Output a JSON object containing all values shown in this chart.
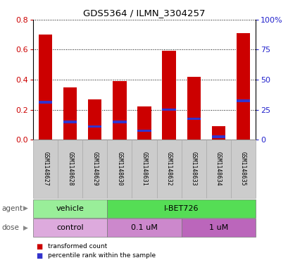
{
  "title": "GDS5364 / ILMN_3304257",
  "samples": [
    "GSM1148627",
    "GSM1148628",
    "GSM1148629",
    "GSM1148630",
    "GSM1148631",
    "GSM1148632",
    "GSM1148633",
    "GSM1148634",
    "GSM1148635"
  ],
  "red_values": [
    0.7,
    0.35,
    0.27,
    0.39,
    0.22,
    0.59,
    0.42,
    0.09,
    0.71
  ],
  "blue_values": [
    0.25,
    0.12,
    0.09,
    0.12,
    0.06,
    0.2,
    0.14,
    0.02,
    0.26
  ],
  "ylim_left": [
    0,
    0.8
  ],
  "ylim_right": [
    0,
    100
  ],
  "y_ticks_left": [
    0,
    0.2,
    0.4,
    0.6,
    0.8
  ],
  "y_ticks_right_vals": [
    0,
    25,
    50,
    75,
    100
  ],
  "y_ticks_right_labels": [
    "0",
    "25",
    "50",
    "75",
    "100%"
  ],
  "bar_color": "#cc0000",
  "blue_color": "#3333cc",
  "agent_labels": [
    {
      "text": "vehicle",
      "start": 0,
      "end": 3,
      "color": "#99ee99"
    },
    {
      "text": "I-BET726",
      "start": 3,
      "end": 9,
      "color": "#55dd55"
    }
  ],
  "dose_labels": [
    {
      "text": "control",
      "start": 0,
      "end": 3,
      "color": "#ddaadd"
    },
    {
      "text": "0.1 uM",
      "start": 3,
      "end": 6,
      "color": "#cc88cc"
    },
    {
      "text": "1 uM",
      "start": 6,
      "end": 9,
      "color": "#bb66bb"
    }
  ],
  "legend_red": "transformed count",
  "legend_blue": "percentile rank within the sample",
  "bar_width": 0.55,
  "tick_color_left": "#cc0000",
  "tick_color_right": "#2222cc",
  "agent_row_label": "agent",
  "dose_row_label": "dose",
  "sample_bg": "#cccccc",
  "sample_border": "#aaaaaa"
}
